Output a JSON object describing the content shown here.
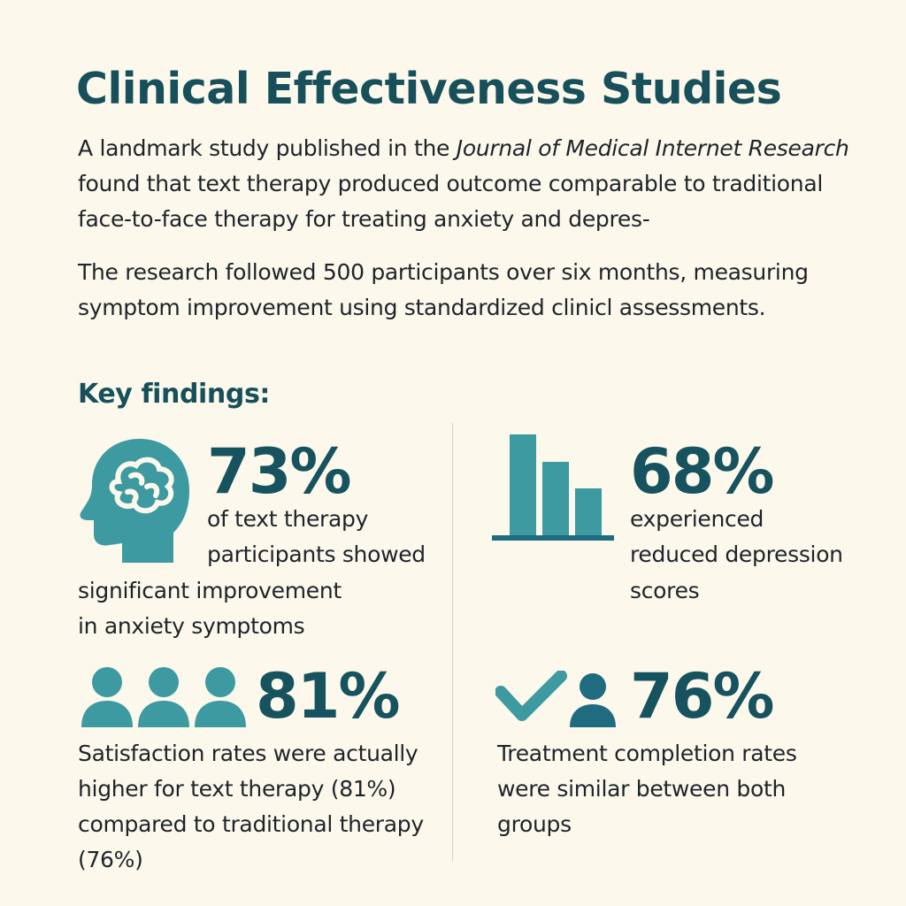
{
  "header": {
    "title": "Clinical Effectiveness Studies"
  },
  "intro": {
    "p1_before": "A landmark study published in the ",
    "p1_journal": "Journal of Medical Internet Research",
    "p1_after": " found that text therapy produced outcome comparable to traditional face-to-face therapy for treating anxiety and depres-",
    "p2": "The research followed 500 participants over six months, measuring symptom improvement using standardized clinicl assessments."
  },
  "findings": {
    "heading": "Key findings:",
    "items": [
      {
        "value": "73%",
        "lines": [
          "of text therapy",
          "participants showed",
          "significant improvement",
          "in anxiety symptoms"
        ],
        "icon": "brain-head-icon"
      },
      {
        "value": "68%",
        "lines": [
          "experienced",
          "reduced depression",
          "scores"
        ],
        "icon": "bar-chart-icon"
      },
      {
        "value": "81%",
        "lines": [
          "Satisfaction rates were actually",
          "higher for text therapy (81%)",
          "compared to traditional therapy",
          "(76%)"
        ],
        "icon": "people-group-icon"
      },
      {
        "value": "76%",
        "lines": [
          "Treatment completion rates",
          "were similar between both",
          "groups"
        ],
        "icon": "check-person-icon"
      }
    ]
  },
  "colors": {
    "background": "#fcf8ec",
    "heading": "#17505a",
    "icon_teal": "#3c9aa0",
    "icon_dark": "#1f6b80",
    "text": "#1d242a"
  }
}
